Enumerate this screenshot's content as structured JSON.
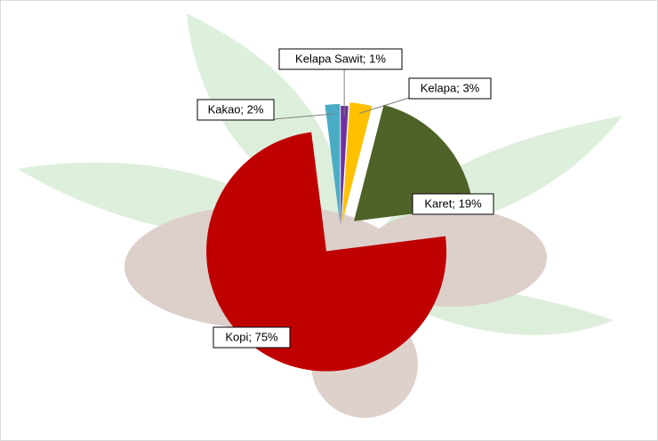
{
  "chart_data": {
    "type": "pie",
    "values": [
      1,
      3,
      19,
      75,
      2
    ],
    "value_labels": [
      "Kelapa Sawit; 1%",
      "Kelapa; 3%",
      "Karet; 19%",
      "Kopi; 75%",
      "Kakao; 2%"
    ],
    "colors": [
      "#7030a0",
      "#ffc000",
      "#4f6228",
      "#c00000",
      "#4bacc6"
    ]
  }
}
